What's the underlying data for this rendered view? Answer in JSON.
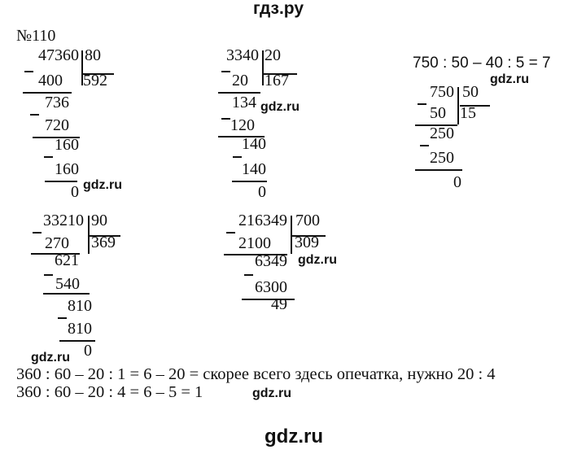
{
  "header": {
    "site_title": "гдз.ру"
  },
  "problem_number": "№110",
  "watermark": "gdz.ru",
  "divisions": [
    {
      "dividend": "47360",
      "divisor": "80",
      "quotient": "592",
      "steps": [
        "400",
        "736",
        "720",
        "160",
        "160",
        "0"
      ]
    },
    {
      "dividend": "3340",
      "divisor": "20",
      "quotient": "167",
      "steps": [
        "20",
        "134",
        "120",
        "140",
        "140",
        "0"
      ]
    },
    {
      "dividend": "750",
      "divisor": "50",
      "quotient": "15",
      "steps": [
        "50",
        "250",
        "250",
        "0"
      ]
    },
    {
      "dividend": "33210",
      "divisor": "90",
      "quotient": "369",
      "steps": [
        "270",
        "621",
        "540",
        "810",
        "810",
        "0"
      ]
    },
    {
      "dividend": "216349",
      "divisor": "700",
      "quotient": "309",
      "steps": [
        "2100",
        "6349",
        "6300",
        "49"
      ]
    }
  ],
  "equation_top_right": "750 : 50 – 40 : 5 = 7",
  "text_lines": [
    "360 : 60 – 20 : 1 = 6 – 20 = скорее всего здесь опечатка, нужно  20 : 4",
    "360 : 60 – 20 : 4 = 6 – 5 = 1"
  ],
  "footer": {
    "site_label": "gdz.ru"
  }
}
